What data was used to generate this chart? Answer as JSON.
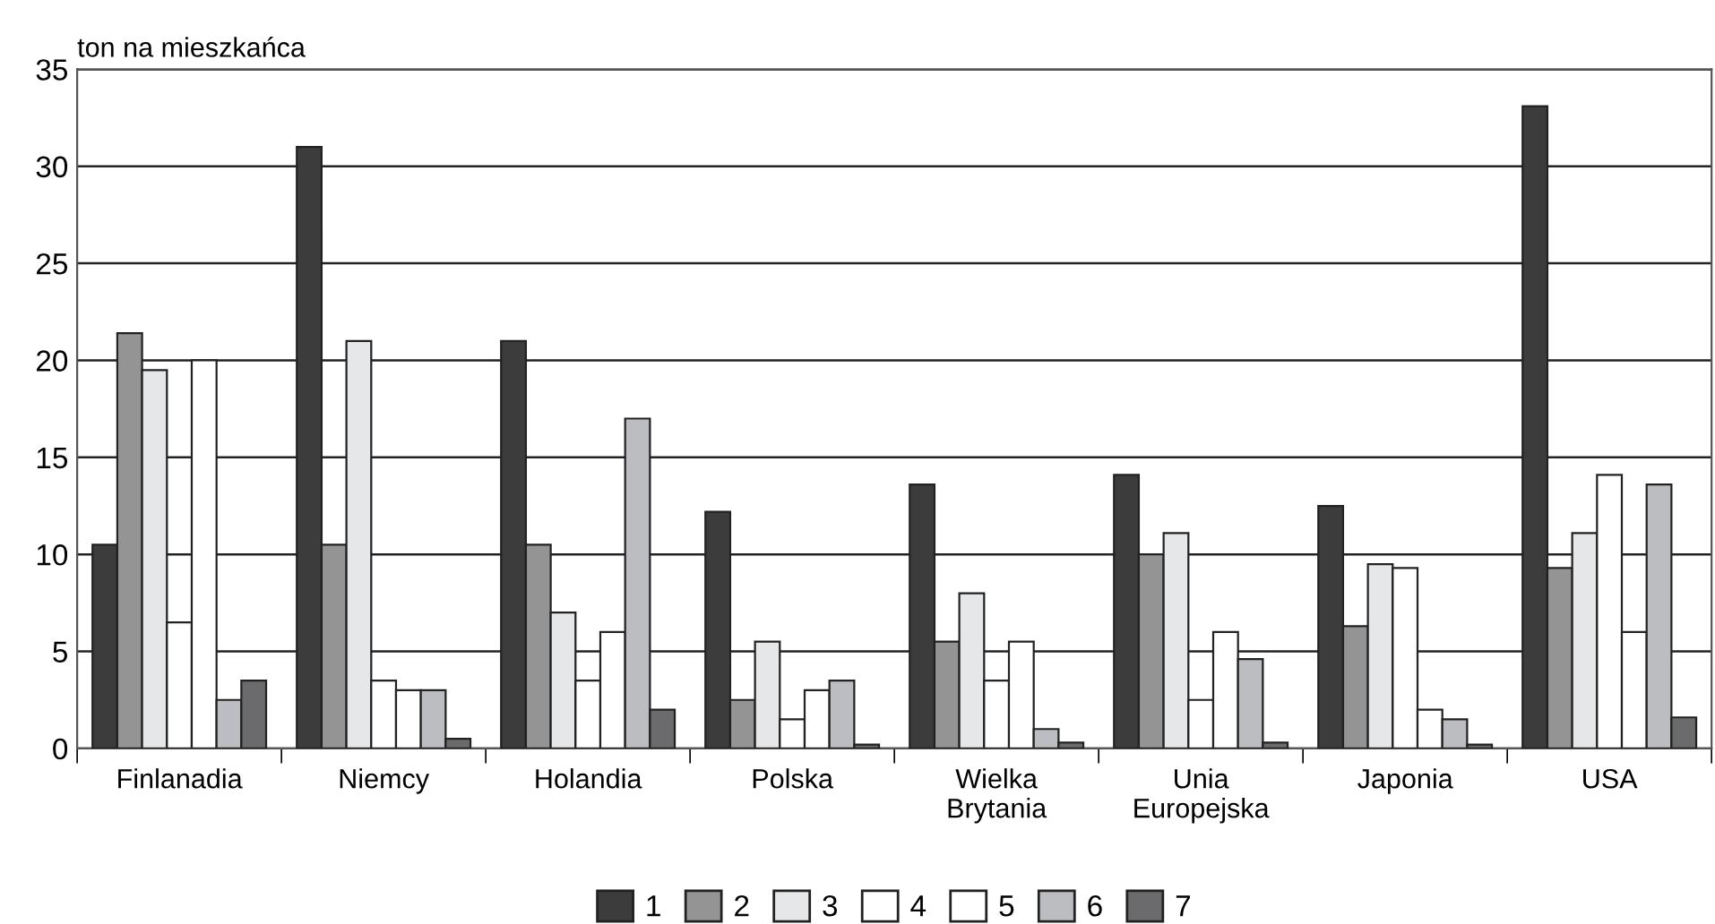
{
  "chart_data": {
    "type": "bar",
    "ylabel": "ton na mieszkańca",
    "categories": [
      "Finlanadia",
      "Niemcy",
      "Holandia",
      "Polska",
      "Wielka\nBrytania",
      "Unia\nEuropejska",
      "Japonia",
      "USA"
    ],
    "series": [
      {
        "name": "1",
        "color": "#3c3c3c",
        "values": [
          10.5,
          31,
          21,
          12.2,
          13.6,
          14.1,
          12.5,
          33.1
        ]
      },
      {
        "name": "2",
        "color": "#949494",
        "values": [
          21.4,
          10.5,
          10.5,
          2.5,
          5.5,
          10,
          6.3,
          9.3
        ]
      },
      {
        "name": "3",
        "color": "#e6e7e8",
        "values": [
          19.5,
          21,
          7,
          5.5,
          8,
          11.1,
          9.5,
          11.1
        ]
      },
      {
        "name": "4",
        "color": "#ffffff",
        "values": [
          6.5,
          3.5,
          3.5,
          1.5,
          3.5,
          2.5,
          9.3,
          14.1
        ]
      },
      {
        "name": "5",
        "color": "#ffffff",
        "values": [
          20,
          3,
          6,
          3,
          5.5,
          6,
          2,
          6
        ]
      },
      {
        "name": "6",
        "color": "#bcbdc0",
        "values": [
          2.5,
          3,
          17,
          3.5,
          1,
          4.6,
          1.5,
          13.6
        ]
      },
      {
        "name": "7",
        "color": "#6b6b6d",
        "values": [
          3.5,
          0.5,
          2,
          0.2,
          0.3,
          0.3,
          0.2,
          1.6
        ]
      }
    ],
    "ylim": [
      0,
      35
    ],
    "yticks": [
      0,
      5,
      10,
      15,
      20,
      25,
      30,
      35
    ],
    "grid": "y",
    "legend": "bottom"
  }
}
